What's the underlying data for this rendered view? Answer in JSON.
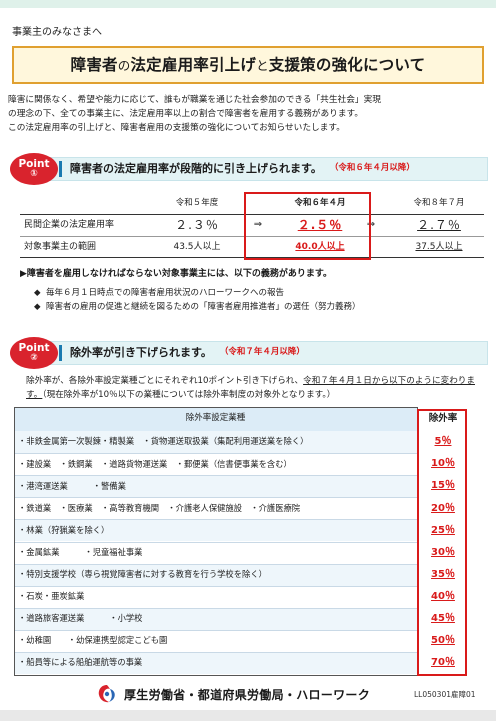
{
  "addressee": "事業主のみなさまへ",
  "title": {
    "part1": "障害者",
    "part2": "の",
    "part3": "法定雇用率引上げ",
    "part4": "と",
    "part5": "支援策の強化について"
  },
  "intro": [
    "障害に関係なく、希望や能力に応じて、誰もが職業を通じた社会参加のできる「共生社会」実現",
    "の理念の下、全ての事業主に、法定雇用率以上の割合で障害者を雇用する義務があります。",
    "この法定雇用率の引上げと、障害者雇用の支援策の強化についてお知らせいたします。"
  ],
  "point1": {
    "badge_word": "Point",
    "badge_num": "①",
    "heading": "障害者の法定雇用率が段階的に引き上げられます。",
    "period": "（令和６年４月以降）",
    "table": {
      "columns": [
        "",
        "令和５年度",
        "令和６年４月",
        "令和８年７月"
      ],
      "rows": [
        {
          "label": "民間企業の法定雇用率",
          "v1": "２.３％",
          "arrow1": "⇒",
          "v2": "２.５％",
          "arrow2": "⇒",
          "v3": "２.７％"
        },
        {
          "label": "対象事業主の範囲",
          "v1": "43.5人以上",
          "v2": "40.0人以上",
          "v3": "37.5人以上"
        }
      ]
    },
    "duty_heading": "▶障害者を雇用しなければならない対象事業主には、以下の義務があります。",
    "duties": [
      "毎年６月１日時点での障害者雇用状況のハローワークへの報告",
      "障害者の雇用の促進と継続を図るための「障害者雇用推進者」の選任（努力義務）"
    ],
    "bullet": "◆"
  },
  "point2": {
    "badge_word": "Point",
    "badge_num": "②",
    "heading": "除外率が引き下げられます。",
    "period": "（令和７年４月以降）",
    "text_a": "除外率が、各除外率設定業種ごとにそれぞれ10ポイント引き下げられ、",
    "text_b": "令和７年４月１日から以下のように変わります。",
    "text_c": "（現在除外率が10％以下の業種については除外率制度の対象外となります。）",
    "table_head_industry": "除外率設定業種",
    "table_head_rate": "除外率",
    "rows": [
      {
        "industry": "・非鉄金属第一次製錬・精製業　・貨物運送取扱業（集配利用運送業を除く）",
        "rate": "5％"
      },
      {
        "industry": "・建設業　・鉄鋼業　・道路貨物運送業　・郵便業（信書便事業を含む）",
        "rate": "10％"
      },
      {
        "industry": "・港湾運送業　　　・警備業",
        "rate": "15％"
      },
      {
        "industry": "・鉄道業　・医療業　・高等教育機関　・介護老人保健施設　・介護医療院",
        "rate": "20％"
      },
      {
        "industry": "・林業（狩猟業を除く）",
        "rate": "25％"
      },
      {
        "industry": "・金属鉱業　　　・児童福祉事業",
        "rate": "30％"
      },
      {
        "industry": "・特別支援学校（専ら視覚障害者に対する教育を行う学校を除く）",
        "rate": "35％"
      },
      {
        "industry": "・石炭・亜炭鉱業",
        "rate": "40％"
      },
      {
        "industry": "・道路旅客運送業　　　・小学校",
        "rate": "45％"
      },
      {
        "industry": "・幼稚園　　・幼保連携型認定こども園",
        "rate": "50％"
      },
      {
        "industry": "・船員等による船舶運航等の事業",
        "rate": "70％"
      }
    ]
  },
  "footer": {
    "org": "厚生労働省・都道府県労働局・ハローワーク",
    "code": "LL050301雇障01",
    "logo_icon": "mhlw-logo-icon"
  },
  "colors": {
    "accent_red": "#d91a1a",
    "title_border": "#e0a030",
    "title_bg": "#fff7dc",
    "band_bg": "#e3f3f5",
    "band_bar": "#1a7ab0"
  }
}
